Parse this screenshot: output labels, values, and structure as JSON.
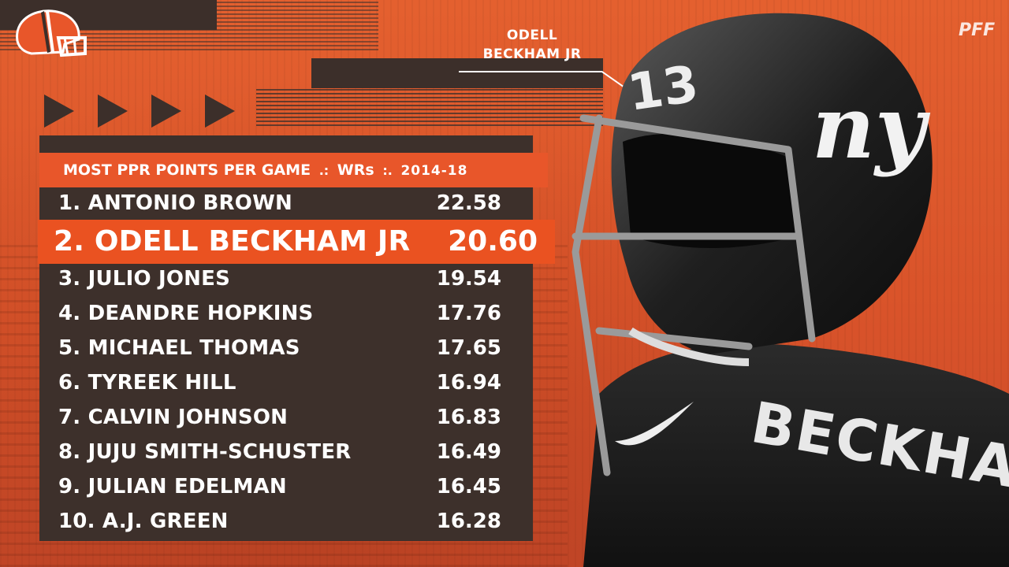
{
  "header": {
    "player_label_line1": "ODELL",
    "player_label_line2": "BECKHAM JR",
    "brand": "PFF"
  },
  "table": {
    "title_left": "MOST PPR POINTS PER GAME",
    "sep1": ".:",
    "title_mid": "WRs",
    "sep2": ":.",
    "title_years": "2014-18",
    "rows": [
      {
        "label": "1. ANTONIO BROWN",
        "value": "22.58"
      },
      {
        "label": "2. ODELL BECKHAM JR",
        "value": "20.60"
      },
      {
        "label": "3. JULIO JONES",
        "value": "19.54"
      },
      {
        "label": "4. DEANDRE HOPKINS",
        "value": "17.76"
      },
      {
        "label": "5. MICHAEL THOMAS",
        "value": "17.65"
      },
      {
        "label": "6. TYREEK HILL",
        "value": "16.94"
      },
      {
        "label": "7. CALVIN JOHNSON",
        "value": "16.83"
      },
      {
        "label": "8. JUJU SMITH-SCHUSTER",
        "value": "16.49"
      },
      {
        "label": "9. JULIAN EDELMAN",
        "value": "16.45"
      },
      {
        "label": "10. A.J. GREEN",
        "value": "16.28"
      }
    ]
  },
  "colors": {
    "background": "#e0562a",
    "panel": "#3d302b",
    "accent": "#ea5221",
    "text": "#ffffff"
  },
  "icons": {
    "team_logo": "browns-helmet-icon",
    "chevrons": "chevron-right-icon"
  }
}
